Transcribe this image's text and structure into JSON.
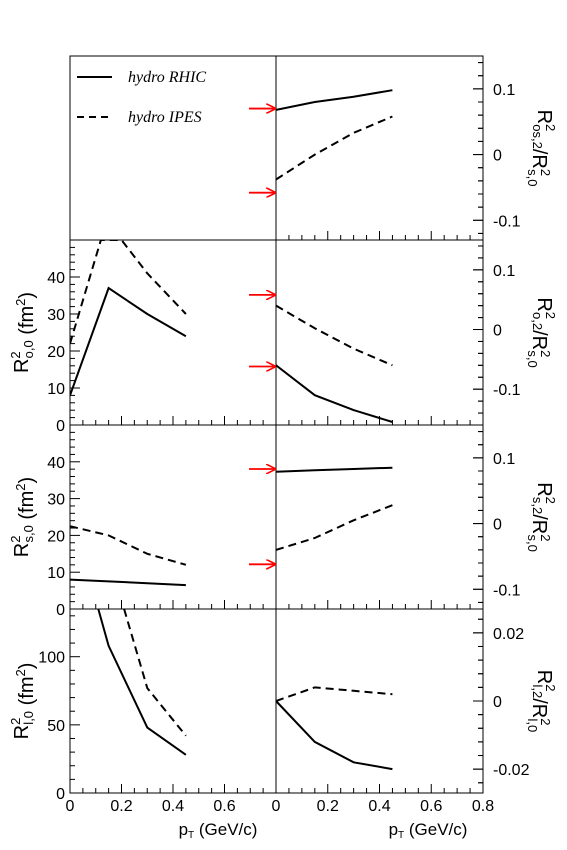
{
  "legend": {
    "rhic": "hydro RHIC",
    "ipes": "hydro IPES"
  },
  "styles": {
    "rhic": "solid",
    "ipes": "dashed",
    "arrow_color": "#ff0000",
    "line_color": "#000000"
  },
  "x_labels": {
    "left": "pT (GeV/c)",
    "right": "pT (GeV/c)"
  },
  "chart_data": [
    {
      "id": "legend-panel",
      "type": "line",
      "panel": "top-left",
      "series": []
    },
    {
      "id": "Ros2",
      "type": "line",
      "panel": "top-right",
      "ylabel": "R²os,2/R²s,0",
      "ylim": [
        -0.13,
        0.15
      ],
      "xlim": [
        0,
        0.8
      ],
      "yticks": [
        0.1,
        0,
        -0.1
      ],
      "yticklabels": [
        "0.1",
        "0",
        "-0.1"
      ],
      "series": [
        {
          "name": "hydro RHIC",
          "x": [
            0,
            0.15,
            0.3,
            0.45
          ],
          "y": [
            0.068,
            0.08,
            0.088,
            0.098
          ]
        },
        {
          "name": "hydro IPES",
          "x": [
            0,
            0.15,
            0.3,
            0.45
          ],
          "y": [
            -0.038,
            0.0,
            0.033,
            0.058
          ]
        }
      ],
      "arrows_y": [
        0.07,
        -0.058
      ]
    },
    {
      "id": "Ro0",
      "type": "line",
      "panel": "left-row2",
      "ylabel": "R²o,0 (fm²)",
      "ylim": [
        0,
        50
      ],
      "xlim": [
        0,
        0.8
      ],
      "yticks": [
        0,
        10,
        20,
        30,
        40
      ],
      "yticklabels": [
        "0",
        "10",
        "20",
        "30",
        "40"
      ],
      "series": [
        {
          "name": "hydro RHIC",
          "x": [
            0,
            0.15,
            0.3,
            0.45
          ],
          "y": [
            8,
            37,
            30,
            24
          ]
        },
        {
          "name": "hydro IPES",
          "x": [
            0,
            0.12,
            0.2,
            0.3,
            0.45
          ],
          "y": [
            22,
            50,
            50,
            41,
            30
          ]
        }
      ]
    },
    {
      "id": "Ro2",
      "type": "line",
      "panel": "right-row2",
      "ylabel": "R²o,2/R²s,0",
      "ylim": [
        -0.16,
        0.15
      ],
      "xlim": [
        0,
        0.8
      ],
      "yticks": [
        0.1,
        0,
        -0.1
      ],
      "yticklabels": [
        "0.1",
        "0",
        "-0.1"
      ],
      "series": [
        {
          "name": "hydro RHIC",
          "x": [
            0,
            0.15,
            0.3,
            0.45
          ],
          "y": [
            -0.06,
            -0.11,
            -0.135,
            -0.155
          ]
        },
        {
          "name": "hydro IPES",
          "x": [
            0,
            0.15,
            0.3,
            0.45
          ],
          "y": [
            0.04,
            0.002,
            -0.032,
            -0.06
          ]
        }
      ],
      "arrows_y": [
        0.058,
        -0.062
      ]
    },
    {
      "id": "Rs0",
      "type": "line",
      "panel": "left-row3",
      "ylabel": "R²s,0 (fm²)",
      "ylim": [
        0,
        50
      ],
      "xlim": [
        0,
        0.8
      ],
      "yticks": [
        0,
        10,
        20,
        30,
        40
      ],
      "yticklabels": [
        "0",
        "10",
        "20",
        "30",
        "40"
      ],
      "series": [
        {
          "name": "hydro RHIC",
          "x": [
            0,
            0.15,
            0.3,
            0.45
          ],
          "y": [
            8,
            7.5,
            7,
            6.5
          ]
        },
        {
          "name": "hydro IPES",
          "x": [
            0,
            0.15,
            0.3,
            0.45
          ],
          "y": [
            22.5,
            20,
            15,
            12
          ]
        }
      ]
    },
    {
      "id": "Rs2",
      "type": "line",
      "panel": "right-row3",
      "ylabel": "R²s,2/R²s,0",
      "ylim": [
        -0.13,
        0.15
      ],
      "xlim": [
        0,
        0.8
      ],
      "yticks": [
        0.1,
        0,
        -0.1
      ],
      "yticklabels": [
        "0.1",
        "0",
        "-0.1"
      ],
      "series": [
        {
          "name": "hydro RHIC",
          "x": [
            0,
            0.15,
            0.3,
            0.45
          ],
          "y": [
            0.079,
            0.081,
            0.083,
            0.085
          ]
        },
        {
          "name": "hydro IPES",
          "x": [
            0,
            0.15,
            0.3,
            0.45
          ],
          "y": [
            -0.04,
            -0.022,
            0.005,
            0.028
          ]
        }
      ],
      "arrows_y": [
        0.083,
        -0.062
      ]
    },
    {
      "id": "Rl0",
      "type": "line",
      "panel": "left-row4",
      "ylabel": "R²l,0 (fm²)",
      "ylim": [
        0,
        135
      ],
      "xlim": [
        0,
        0.8
      ],
      "yticks": [
        0,
        50,
        100
      ],
      "yticklabels": [
        "0",
        "50",
        "100"
      ],
      "xticks": [
        0,
        0.2,
        0.4,
        0.6
      ],
      "xticklabels": [
        "0",
        "0.2",
        "0.4",
        "0.6"
      ],
      "series": [
        {
          "name": "hydro RHIC",
          "x": [
            0.11,
            0.15,
            0.3,
            0.45
          ],
          "y": [
            135,
            108,
            48,
            28
          ]
        },
        {
          "name": "hydro IPES",
          "x": [
            0.21,
            0.3,
            0.45
          ],
          "y": [
            135,
            77,
            42
          ]
        }
      ]
    },
    {
      "id": "Rl2",
      "type": "line",
      "panel": "right-row4",
      "ylabel": "R²l,2/R²l,0",
      "ylim": [
        -0.027,
        0.027
      ],
      "xlim": [
        0,
        0.8
      ],
      "yticks": [
        0.02,
        0,
        -0.02
      ],
      "yticklabels": [
        "0.02",
        "0",
        "-0.02"
      ],
      "xticks": [
        0,
        0.2,
        0.4,
        0.6,
        0.8
      ],
      "xticklabels": [
        "0",
        "0.2",
        "0.4",
        "0.6",
        "0.8"
      ],
      "series": [
        {
          "name": "hydro RHIC",
          "x": [
            0,
            0.15,
            0.3,
            0.45
          ],
          "y": [
            0.0,
            -0.012,
            -0.018,
            -0.02
          ]
        },
        {
          "name": "hydro IPES",
          "x": [
            0,
            0.15,
            0.3,
            0.45
          ],
          "y": [
            0.0,
            0.004,
            0.003,
            0.002
          ]
        }
      ]
    }
  ]
}
